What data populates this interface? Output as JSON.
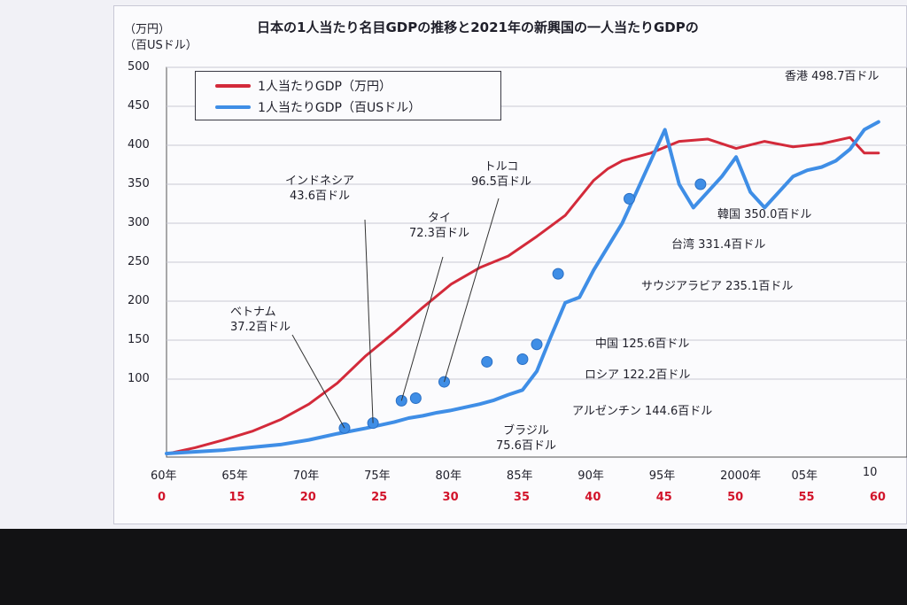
{
  "slide": {
    "title": "日本の1人当たり名目GDPの推移と2021年の新興国の一人当たりGDPの",
    "unit_top": "（万円）",
    "unit_bottom": "（百USドル）"
  },
  "legend": [
    {
      "label": "1人当たりGDP（万円）",
      "color": "#d32a3a"
    },
    {
      "label": "1人当たりGDP（百USドル）",
      "color": "#3f8ee6"
    }
  ],
  "chart_data": {
    "type": "line",
    "ylim": [
      0,
      500
    ],
    "yticks": [
      "500",
      "450",
      "400",
      "350",
      "300",
      "250",
      "200",
      "150",
      "100"
    ],
    "xticks": [
      "60年",
      "65年",
      "70年",
      "75年",
      "80年",
      "85年",
      "90年",
      "95年",
      "2000年",
      "05年",
      "10"
    ],
    "xticks_sub": [
      "0",
      "15",
      "20",
      "25",
      "30",
      "35",
      "40",
      "45",
      "50",
      "55",
      "60"
    ],
    "series": [
      {
        "name": "1人当たりGDP（万円）",
        "color": "#d32a3a",
        "x": [
          1960,
          1962,
          1964,
          1966,
          1968,
          1970,
          1972,
          1974,
          1976,
          1978,
          1980,
          1982,
          1984,
          1986,
          1988,
          1990,
          1991,
          1992,
          1994,
          1996,
          1998,
          2000,
          2002,
          2004,
          2006,
          2008,
          2009,
          2010
        ],
        "values": [
          4,
          12,
          22,
          33,
          48,
          68,
          95,
          130,
          160,
          192,
          222,
          243,
          258,
          283,
          310,
          355,
          370,
          380,
          390,
          405,
          408,
          396,
          405,
          398,
          402,
          410,
          390,
          390
        ]
      },
      {
        "name": "1人当たりGDP（百USドル）",
        "color": "#3f8ee6",
        "x": [
          1960,
          1964,
          1968,
          1970,
          1972,
          1974,
          1976,
          1977,
          1978,
          1979,
          1980,
          1981,
          1982,
          1983,
          1984,
          1985,
          1986,
          1987,
          1988,
          1989,
          1990,
          1991,
          1992,
          1993,
          1994,
          1995,
          1996,
          1997,
          1998,
          1999,
          2000,
          2001,
          2002,
          2003,
          2004,
          2005,
          2006,
          2007,
          2008,
          2009,
          2010
        ],
        "values": [
          4.6,
          9,
          16,
          22,
          30,
          37,
          45,
          50,
          53,
          57,
          60,
          64,
          68,
          73,
          80,
          86,
          110,
          155,
          198,
          205,
          240,
          270,
          300,
          340,
          380,
          420,
          350,
          320,
          340,
          360,
          385,
          340,
          320,
          340,
          360,
          368,
          372,
          380,
          395,
          420,
          430
        ]
      }
    ],
    "markers": [
      {
        "x": 1972.5,
        "y": 37.2
      },
      {
        "x": 1974.5,
        "y": 43.6
      },
      {
        "x": 1976.5,
        "y": 72.3
      },
      {
        "x": 1977.5,
        "y": 75.6
      },
      {
        "x": 1979.5,
        "y": 96.5
      },
      {
        "x": 1982.5,
        "y": 122.2
      },
      {
        "x": 1985,
        "y": 125.6
      },
      {
        "x": 1986,
        "y": 144.6
      },
      {
        "x": 1987.5,
        "y": 235.1
      },
      {
        "x": 1992.5,
        "y": 331.4
      },
      {
        "x": 1997.5,
        "y": 350.0
      }
    ]
  },
  "annotations": [
    {
      "lines": [
        "ベトナム",
        "37.2百ドル"
      ]
    },
    {
      "lines": [
        "インドネシア",
        "43.6百ドル"
      ]
    },
    {
      "lines": [
        "タイ",
        "72.3百ドル"
      ]
    },
    {
      "lines": [
        "トルコ",
        "96.5百ドル"
      ]
    },
    {
      "lines": [
        "ブラジル",
        "75.6百ドル"
      ]
    },
    {
      "lines": [
        "ロシア 122.2百ドル"
      ]
    },
    {
      "lines": [
        "中国 125.6百ドル"
      ]
    },
    {
      "lines": [
        "アルゼンチン 144.6百ドル"
      ]
    },
    {
      "lines": [
        "サウジアラビア 235.1百ドル"
      ]
    },
    {
      "lines": [
        "台湾 331.4百ドル"
      ]
    },
    {
      "lines": [
        "韓国 350.0百ドル"
      ]
    },
    {
      "lines": [
        "香港 498.7百ドル"
      ]
    }
  ]
}
